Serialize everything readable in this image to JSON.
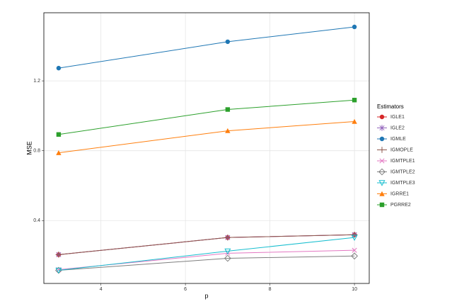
{
  "chart_data": {
    "type": "line",
    "x_label": "p",
    "y_label": "MSE",
    "x": [
      3,
      7,
      10
    ],
    "xlim": [
      2.65,
      10.35
    ],
    "xticks": [
      4,
      6,
      8,
      10
    ],
    "ylim": [
      0.04,
      1.59
    ],
    "yticks": [
      0.4,
      0.8,
      1.2
    ],
    "grid": true,
    "legend_title": "Estimators",
    "legend_position": "right",
    "series": [
      {
        "name": "IGLE1",
        "color": "#d62728",
        "marker": "circle",
        "values": [
          0.205,
          0.303,
          0.319
        ]
      },
      {
        "name": "IGLE2",
        "color": "#9467bd",
        "marker": "asterisk",
        "values": [
          0.205,
          0.303,
          0.319
        ]
      },
      {
        "name": "IGMLE",
        "color": "#1f77b4",
        "marker": "circle",
        "values": [
          1.273,
          1.424,
          1.509
        ]
      },
      {
        "name": "IGMOPLE",
        "color": "#8c564b",
        "marker": "plus",
        "values": [
          0.205,
          0.303,
          0.319
        ]
      },
      {
        "name": "IGMTPLE1",
        "color": "#e377c2",
        "marker": "cross",
        "values": [
          0.119,
          0.213,
          0.23
        ]
      },
      {
        "name": "IGMTPLE2",
        "color": "#7f7f7f",
        "marker": "diamond",
        "values": [
          0.115,
          0.184,
          0.197
        ]
      },
      {
        "name": "IGMTPLE3",
        "color": "#17becf",
        "marker": "triangle-down",
        "values": [
          0.115,
          0.225,
          0.303
        ]
      },
      {
        "name": "IGRRE1",
        "color": "#ff7f0e",
        "marker": "triangle",
        "values": [
          0.788,
          0.914,
          0.967
        ]
      },
      {
        "name": "PGRRE2",
        "color": "#2ca02c",
        "marker": "square",
        "values": [
          0.893,
          1.036,
          1.09
        ]
      }
    ]
  }
}
